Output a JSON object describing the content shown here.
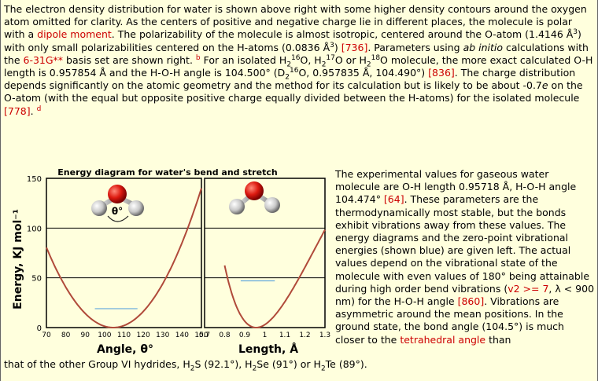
{
  "para1": {
    "s1": "The electron density distribution for water is shown above right with some higher density contours around the oxygen atom omitted for clarity. As the centers of positive and negative charge lie in different places, the molecule is polar with a ",
    "link_dipole": "dipole moment",
    "s2": ". The polarizability of the molecule is almost isotropic, centered around the O-atom (1.4146 Å",
    "sup3a": "3",
    "s3": ") with only small polarizabilities centered on the H-atoms (0.0836 Å",
    "sup3b": "3",
    "s4": ") ",
    "ref736": "[736]",
    "s5": ". Parameters using ",
    "italic_abinitio": "ab initio",
    "s6": " calculations with the ",
    "link_basis": "6-31G**",
    "s7": " basis set are shown right. ",
    "note_b": "b",
    "s8": " For an isolated H",
    "sub2a": "2",
    "sup16a": "16",
    "s9": "O, H",
    "sub2b": "2",
    "sup17": "17",
    "s10": "O or H",
    "sub2c": "2",
    "sup18": "18",
    "s11": "O molecule, the more exact calculated O-H length is 0.957854 Å and the H-O-H angle is 104.500° (D",
    "sub2d": "2",
    "sup16b": "16",
    "s12": "O, 0.957835 Å, 104.490°) ",
    "ref836": "[836]",
    "s13": ". The charge distribution depends significantly on the atomic geometry and the method for its calculation but is likely to be about -0.7",
    "italic_e": "e",
    "s14": " on the O-atom (with the equal but opposite positive charge equally divided between the H-atoms) for the isolated molecule ",
    "ref778": "[778]",
    "s15": ". ",
    "note_d": "d"
  },
  "para2": {
    "s1": "The experimental values for gaseous water molecule are O-H length 0.95718 Å, H-O-H angle 104.474° ",
    "ref64": "[64]",
    "s2": ". These parameters are the thermodynamically most stable, but the bonds exhibit vibrations away from these values. The energy diagrams and the zero-point vibrational energies (shown blue) are given left. The actual values depend on the vibrational state of the molecule with even values of 180° being attainable during high order bend vibrations (",
    "link_v2": "v2 >= 7",
    "s3": ", λ < 900 nm) for the H-O-H angle ",
    "ref860": "[860]",
    "s4": ". Vibrations are asymmetric around the mean positions. In the ground state, the bond angle (104.5°) is much closer to the ",
    "link_tetra": "tetrahedral angle",
    "s5": " than"
  },
  "para3": {
    "s1": "that of the other Group VI hydrides, H",
    "sub2a": "2",
    "s2": "S (92.1°), H",
    "sub2b": "2",
    "s3": "Se (91°) or H",
    "sub2c": "2",
    "s4": "Te (89°)."
  },
  "chart_data": {
    "type": "line",
    "title": "Energy diagram for water's bend and stretch",
    "ylabel": "Energy, KJ mol⁻¹",
    "ylim": [
      0,
      150
    ],
    "yticks": [
      "150",
      "100",
      "50",
      "0"
    ],
    "angle_symbol": "θ°",
    "panels": [
      {
        "xlabel": "Angle, θ°",
        "xlim": [
          70,
          150
        ],
        "xticks": [
          "70",
          "80",
          "90",
          "100",
          "110",
          "120",
          "130",
          "140",
          "150"
        ],
        "curve_min": [
          104.5,
          0
        ],
        "zero_point_energy": 19,
        "zero_point_range": [
          95,
          117
        ]
      },
      {
        "xlabel": "Length, Å",
        "xlim": [
          0.7,
          1.3
        ],
        "xticks": [
          "0.7",
          "0.8",
          "0.9",
          "1",
          "1.1",
          "1.2",
          "1.3"
        ],
        "curve_min": [
          0.957,
          0
        ],
        "zero_point_energy": 47,
        "zero_point_range": [
          0.88,
          1.05
        ]
      }
    ],
    "colors": {
      "curve": "#b04a3a",
      "zero_point": "#66aadd",
      "grid": "#000000"
    }
  }
}
